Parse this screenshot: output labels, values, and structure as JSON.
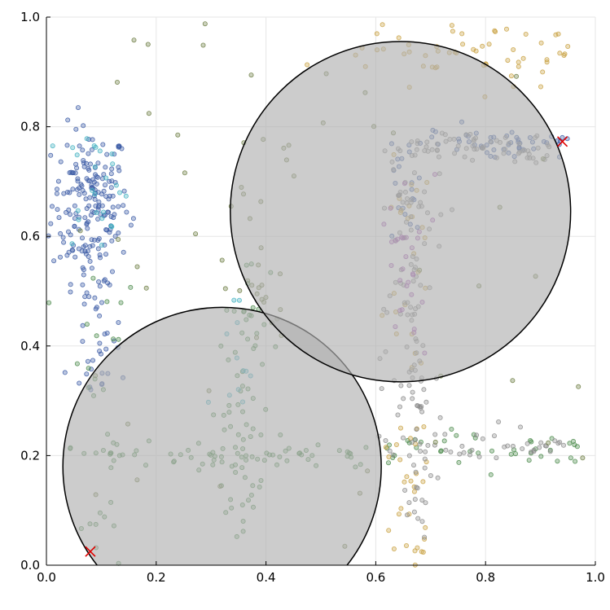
{
  "chart_data": {
    "type": "scatter",
    "title": "",
    "xlabel": "",
    "ylabel": "",
    "xlim": [
      0,
      1
    ],
    "ylim": [
      0,
      1
    ],
    "grid": true,
    "legend": "none",
    "x_ticks": [
      "0.0",
      "0.2",
      "0.4",
      "0.6",
      "0.8",
      "1.0"
    ],
    "y_ticks": [
      "0.0",
      "0.2",
      "0.4",
      "0.6",
      "0.8",
      "1.0"
    ],
    "circles": [
      {
        "cx": 0.32,
        "cy": 0.18,
        "r": 0.29,
        "fill": "#b0b0b0",
        "stroke": "#000000"
      },
      {
        "cx": 0.645,
        "cy": 0.645,
        "r": 0.31,
        "fill": "#b0b0b0",
        "stroke": "#000000"
      }
    ],
    "markers": [
      {
        "x": 0.08,
        "y": 0.025,
        "symbol": "x",
        "color": "#e00000"
      },
      {
        "x": 0.94,
        "y": 0.773,
        "symbol": "x",
        "color": "#e00000"
      }
    ],
    "series": [
      {
        "color": "#3b5ba5",
        "clusters": [
          {
            "kind": "blob",
            "cx": 0.08,
            "cy": 0.66,
            "sx": 0.035,
            "sy": 0.07,
            "n": 190
          },
          {
            "kind": "vbar",
            "x": 0.085,
            "y0": 0.32,
            "y1": 0.58,
            "spread": 0.02,
            "n": 40
          },
          {
            "kind": "hbar",
            "y": 0.77,
            "x0": 0.7,
            "x1": 0.95,
            "spread": 0.012,
            "n": 50
          },
          {
            "kind": "vbar",
            "x": 0.65,
            "y0": 0.6,
            "y1": 0.78,
            "spread": 0.02,
            "n": 20
          }
        ]
      },
      {
        "color": "#4a8a4a",
        "clusters": [
          {
            "kind": "hbar",
            "y": 0.2,
            "x0": 0.1,
            "x1": 0.6,
            "spread": 0.01,
            "n": 60
          },
          {
            "kind": "vbar",
            "x": 0.36,
            "y0": 0.05,
            "y1": 0.55,
            "spread": 0.03,
            "n": 70
          },
          {
            "kind": "vbar",
            "x": 0.09,
            "y0": 0.0,
            "y1": 0.55,
            "spread": 0.03,
            "n": 30
          },
          {
            "kind": "hbar",
            "y": 0.21,
            "x0": 0.62,
            "x1": 0.98,
            "spread": 0.015,
            "n": 40
          }
        ]
      },
      {
        "color": "#c8a040",
        "clusters": [
          {
            "kind": "blob",
            "cx": 0.78,
            "cy": 0.94,
            "sx": 0.12,
            "sy": 0.03,
            "n": 60
          },
          {
            "kind": "vbar",
            "x": 0.66,
            "y0": 0.0,
            "y1": 0.28,
            "spread": 0.02,
            "n": 30
          },
          {
            "kind": "vbar",
            "x": 0.66,
            "y0": 0.35,
            "y1": 0.75,
            "spread": 0.02,
            "n": 25
          }
        ]
      },
      {
        "color": "#8a8a8a",
        "clusters": [
          {
            "kind": "vbar",
            "x": 0.66,
            "y0": 0.3,
            "y1": 0.78,
            "spread": 0.025,
            "n": 90
          },
          {
            "kind": "hbar",
            "y": 0.76,
            "x0": 0.64,
            "x1": 0.92,
            "spread": 0.015,
            "n": 60
          },
          {
            "kind": "hbar",
            "y": 0.22,
            "x0": 0.6,
            "x1": 0.95,
            "spread": 0.015,
            "n": 40
          },
          {
            "kind": "vbar",
            "x": 0.68,
            "y0": 0.05,
            "y1": 0.3,
            "spread": 0.02,
            "n": 35
          }
        ]
      },
      {
        "color": "#a050b0",
        "clusters": [
          {
            "kind": "vbar",
            "x": 0.66,
            "y0": 0.38,
            "y1": 0.72,
            "spread": 0.02,
            "n": 30
          }
        ]
      },
      {
        "color": "#40b0c0",
        "clusters": [
          {
            "kind": "blob",
            "cx": 0.09,
            "cy": 0.7,
            "sx": 0.03,
            "sy": 0.06,
            "n": 25
          },
          {
            "kind": "vbar",
            "x": 0.35,
            "y0": 0.2,
            "y1": 0.5,
            "spread": 0.02,
            "n": 12
          }
        ]
      },
      {
        "color": "#6a7a40",
        "clusters": [
          {
            "kind": "vbar",
            "x": 0.38,
            "y0": 0.4,
            "y1": 0.8,
            "spread": 0.03,
            "n": 30
          },
          {
            "kind": "scatter",
            "x0": 0.0,
            "x1": 1.0,
            "y0": 0.0,
            "y1": 1.0,
            "n": 40
          }
        ]
      }
    ]
  }
}
